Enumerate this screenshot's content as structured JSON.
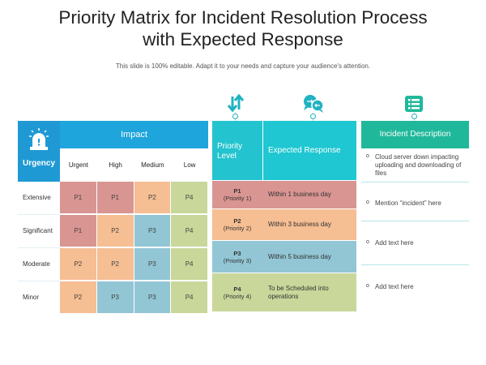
{
  "title_line1": "Priority Matrix for Incident Resolution Process",
  "title_line2": "with Expected Response",
  "subtitle": "This slide is 100% editable. Adapt it to your needs and capture your audience's attention.",
  "colors": {
    "impact_header": "#1ea5dc",
    "urgency_header": "#1f99d4",
    "teal_header": "#1ec7d1",
    "green_header": "#20b89a",
    "p1": "#d99592",
    "p2": "#f5be93",
    "p3": "#92c6d5",
    "p4": "#c9d79a"
  },
  "icons": {
    "alarm": "alarm-siren-icon",
    "sort": "sort-arrows-icon",
    "chat": "chat-bubbles-icon",
    "list": "list-icon"
  },
  "matrix": {
    "impact_label": "Impact",
    "urgency_label": "Urgency",
    "columns": [
      "Urgent",
      "High",
      "Medium",
      "Low"
    ],
    "rows": [
      {
        "label": "Extensive",
        "cells": [
          "P1",
          "P1",
          "P2",
          "P4"
        ]
      },
      {
        "label": "Significant",
        "cells": [
          "P1",
          "P2",
          "P3",
          "P4"
        ]
      },
      {
        "label": "Moderate",
        "cells": [
          "P2",
          "P2",
          "P3",
          "P4"
        ]
      },
      {
        "label": "Minor",
        "cells": [
          "P2",
          "P3",
          "P3",
          "P4"
        ]
      }
    ]
  },
  "response_table": {
    "priority_header": "Priority Level",
    "response_header": "Expected Response",
    "rows": [
      {
        "code": "P1",
        "label": "(Priority 1)",
        "response": "Within 1 business day"
      },
      {
        "code": "P2",
        "label": "(Priority 2)",
        "response": "Within 3 business day"
      },
      {
        "code": "P3",
        "label": "(Priority 3)",
        "response": "Within 5 business day"
      },
      {
        "code": "P4",
        "label": "(Priority 4)",
        "response": "To be Scheduled  into operations"
      }
    ]
  },
  "description": {
    "header": "Incident Description",
    "bullet": "o",
    "items": [
      "Cloud server down impacting uploading and downloading of files",
      "Mention “incident” here",
      "Add text here",
      "Add text here"
    ]
  }
}
